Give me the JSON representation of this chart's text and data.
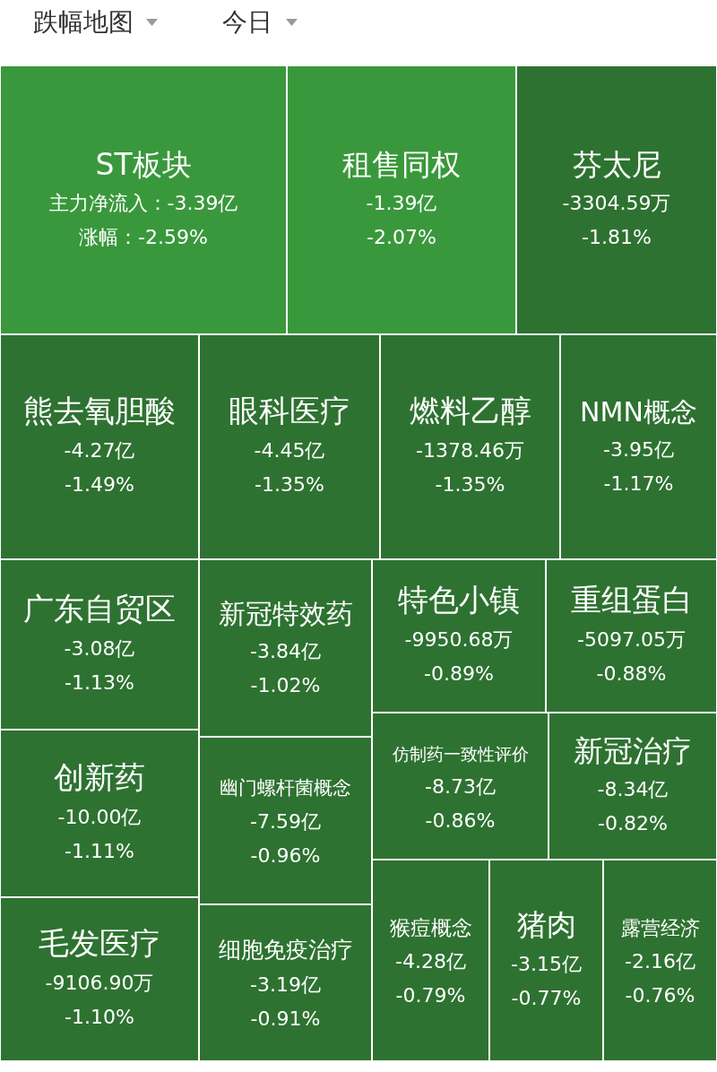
{
  "chart_data": {
    "type": "other",
    "title": "跌幅地图",
    "subtitle": "今日",
    "categories": [
      "ST板块",
      "租售同权",
      "芬太尼",
      "熊去氧胆酸",
      "眼科医疗",
      "燃料乙醇",
      "NMN概念",
      "广东自贸区",
      "创新药",
      "毛发医疗",
      "新冠特效药",
      "幽门螺杆菌概念",
      "细胞免疫治疗",
      "特色小镇",
      "重组蛋白",
      "仿制药一致性评价",
      "新冠治疗",
      "猴痘概念",
      "猪肉",
      "露营经济"
    ],
    "series": [
      {
        "colors": [
          "#3a983c",
          "#3a983c",
          "#2e7231",
          "#2e7231",
          "#2e7231",
          "#2e7231",
          "#2e7231",
          "#2e7231",
          "#2e7231",
          "#2e7231",
          "#2e7231",
          "#2e7231",
          "#2e7231",
          "#2e7231",
          "#2e7231",
          "#2e7231",
          "#2e7231",
          "#2e7231",
          "#2e7231",
          "#2e7231"
        ],
        "values": [
          -3.39,
          -1.39,
          -3304.59,
          -4.27,
          -4.45,
          -1378.46,
          -3.95,
          -3.08,
          -10.0,
          -9106.9,
          -3.84,
          -7.59,
          -3.19,
          -9950.68,
          -5097.05,
          -8.73,
          -8.34,
          -4.28,
          -3.15,
          -2.16
        ],
        "value_labels": [
          "主力净流入：-3.39亿",
          "-1.39亿",
          "-3304.59万",
          "-4.27亿",
          "-4.45亿",
          "-1378.46万",
          "-3.95亿",
          "-3.08亿",
          "-10.00亿",
          "-9106.90万",
          "-3.84亿",
          "-7.59亿",
          "-3.19亿",
          "-9950.68万",
          "-5097.05万",
          "-8.73亿",
          "-8.34亿",
          "-4.28亿",
          "-3.15亿",
          "-2.16亿"
        ]
      },
      {
        "values": [
          -2.59,
          -2.07,
          -1.81,
          -1.49,
          -1.35,
          -1.35,
          -1.17,
          -1.13,
          -1.11,
          -1.1,
          -1.02,
          -0.96,
          -0.91,
          -0.89,
          -0.88,
          -0.86,
          -0.82,
          -0.79,
          -0.77,
          -0.76
        ],
        "value_labels": [
          "涨幅：-2.59%",
          "-2.07%",
          "-1.81%",
          "-1.49%",
          "-1.35%",
          "-1.35%",
          "-1.17%",
          "-1.13%",
          "-1.11%",
          "-1.10%",
          "-1.02%",
          "-0.96%",
          "-0.91%",
          "-0.89%",
          "-0.88%",
          "-0.86%",
          "-0.82%",
          "-0.79%",
          "-0.77%",
          "-0.76%"
        ]
      }
    ]
  }
}
